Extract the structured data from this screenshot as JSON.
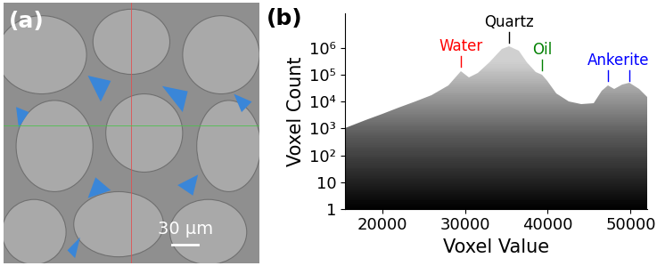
{
  "panel_a": {
    "panel_label": "(a)",
    "scale_bar": "30 µm"
  },
  "chart_data": {
    "type": "area",
    "panel_label": "(b)",
    "xlabel": "Voxel Value",
    "ylabel": "Voxel Count",
    "x": [
      15500,
      18000,
      20000,
      22000,
      24000,
      26000,
      28000,
      29500,
      30500,
      31500,
      33000,
      34500,
      35300,
      36500,
      37500,
      38500,
      39300,
      40000,
      41000,
      42500,
      44000,
      45500,
      46500,
      47300,
      48000,
      49000,
      49800,
      51000,
      52000
    ],
    "values": [
      1000,
      2000,
      3500,
      6000,
      10000,
      18000,
      40000,
      140000,
      80000,
      120000,
      300000,
      900000,
      1200000,
      800000,
      300000,
      130000,
      100000,
      60000,
      20000,
      10000,
      8000,
      9000,
      25000,
      40000,
      30000,
      45000,
      50000,
      30000,
      15000
    ],
    "xlim": [
      15500,
      52000
    ],
    "xticks": [
      20000,
      30000,
      40000,
      50000
    ],
    "ylim": [
      1,
      20000000
    ],
    "yticks": [
      1,
      10,
      {
        "value": 100,
        "label": "10²"
      },
      {
        "value": 1000,
        "label": "10³"
      },
      {
        "value": 10000,
        "label": "10⁴"
      },
      {
        "value": 100000,
        "label": "10⁵"
      },
      {
        "value": 1000000,
        "label": "10⁶"
      }
    ],
    "log": "y",
    "grid": false,
    "annotations": [
      {
        "text": "Water",
        "x": [
          29500
        ],
        "y": 200000,
        "color": "red"
      },
      {
        "text": "Quartz",
        "x": [
          35300
        ],
        "y": 1600000,
        "color": "black"
      },
      {
        "text": "Oil",
        "x": [
          39300
        ],
        "y": 150000,
        "color": "green"
      },
      {
        "text": "Ankerite",
        "x": [
          47300,
          49800
        ],
        "y": 60000,
        "color": "blue"
      }
    ]
  }
}
